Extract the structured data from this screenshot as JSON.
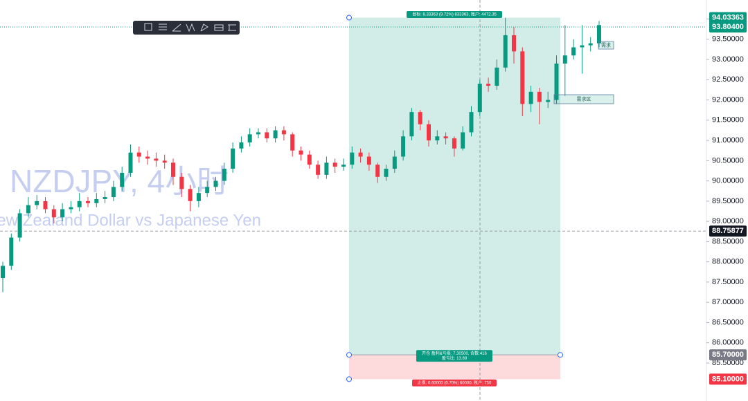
{
  "chart_data": {
    "type": "candlestick",
    "title": "NZDJPY, 4小时",
    "subtitle": "New Zealand Dollar vs Japanese Yen",
    "up_color": "#089981",
    "down_color": "#f23645",
    "open": [
      87.6,
      87.9,
      88.6,
      89.2,
      89.4,
      89.5,
      89.3,
      89.1,
      89.3,
      89.35,
      89.5,
      89.45,
      89.55,
      89.6,
      89.85,
      90.2,
      90.7,
      90.6,
      90.55,
      90.5,
      90.45,
      90.1,
      89.8,
      89.5,
      89.7,
      89.85,
      90.0,
      90.3,
      90.8,
      90.95,
      91.15,
      91.2,
      91.05,
      91.25,
      91.15,
      90.75,
      90.65,
      90.4,
      90.15,
      90.45,
      90.35,
      90.4,
      90.7,
      90.6,
      90.4,
      90.1,
      90.3,
      90.6,
      91.1,
      91.7,
      91.4,
      91.0,
      91.1,
      91.05,
      90.8,
      91.2,
      91.7,
      92.4,
      92.35,
      92.8,
      93.6,
      93.2,
      91.9,
      92.2,
      91.95,
      92.0,
      92.9,
      93.1,
      93.3,
      93.35,
      93.4
    ],
    "high": [
      88.0,
      88.7,
      89.3,
      89.6,
      89.65,
      89.6,
      89.4,
      89.45,
      89.5,
      89.7,
      89.6,
      89.7,
      89.75,
      90.0,
      90.35,
      90.9,
      90.85,
      90.75,
      90.7,
      90.65,
      90.55,
      90.2,
      89.9,
      89.85,
      90.0,
      90.1,
      90.45,
      90.95,
      91.1,
      91.3,
      91.3,
      91.3,
      91.35,
      91.35,
      91.2,
      90.85,
      90.75,
      90.5,
      90.6,
      90.55,
      90.55,
      90.85,
      90.8,
      90.7,
      90.45,
      90.4,
      90.75,
      91.25,
      91.8,
      91.75,
      91.5,
      91.25,
      91.2,
      91.1,
      91.35,
      91.85,
      92.5,
      92.55,
      93.0,
      94.03,
      93.8,
      93.3,
      92.35,
      92.3,
      92.2,
      93.1,
      93.85,
      93.5,
      93.85,
      93.55,
      93.95
    ],
    "low": [
      87.25,
      87.8,
      88.5,
      89.1,
      89.3,
      89.2,
      88.95,
      89.0,
      89.2,
      89.25,
      89.35,
      89.35,
      89.45,
      89.5,
      89.75,
      90.1,
      90.45,
      90.4,
      90.35,
      90.3,
      89.9,
      89.6,
      89.25,
      89.35,
      89.6,
      89.75,
      89.9,
      90.2,
      90.7,
      90.85,
      91.05,
      90.95,
      90.95,
      91.0,
      90.6,
      90.5,
      90.3,
      90.05,
      90.05,
      90.2,
      90.25,
      90.3,
      90.45,
      90.25,
      89.95,
      90.0,
      90.2,
      90.5,
      91.0,
      91.25,
      90.85,
      90.9,
      90.9,
      90.6,
      90.75,
      91.1,
      91.6,
      92.2,
      92.25,
      92.7,
      92.9,
      91.6,
      91.7,
      91.4,
      91.8,
      91.9,
      92.1,
      93.0,
      92.65,
      93.2,
      93.3
    ],
    "close": [
      87.9,
      88.6,
      89.2,
      89.4,
      89.5,
      89.3,
      89.1,
      89.3,
      89.35,
      89.5,
      89.45,
      89.55,
      89.6,
      89.85,
      90.2,
      90.7,
      90.6,
      90.55,
      90.5,
      90.45,
      90.1,
      89.8,
      89.5,
      89.7,
      89.85,
      90.0,
      90.3,
      90.8,
      90.95,
      91.15,
      91.2,
      91.05,
      91.25,
      91.15,
      90.75,
      90.65,
      90.4,
      90.15,
      90.45,
      90.35,
      90.4,
      90.7,
      90.6,
      90.4,
      90.1,
      90.3,
      90.6,
      91.1,
      91.7,
      91.4,
      91.0,
      91.1,
      91.05,
      90.8,
      91.2,
      91.7,
      92.4,
      92.35,
      92.8,
      93.6,
      93.2,
      91.9,
      92.2,
      91.95,
      92.0,
      92.9,
      93.1,
      93.3,
      93.35,
      93.4,
      93.85
    ],
    "ylim": [
      84.56,
      94.47
    ],
    "yticks": [
      {
        "value": 85.5,
        "label": "85.50000"
      },
      {
        "value": 86.0,
        "label": "86.00000"
      },
      {
        "value": 86.5,
        "label": "86.50000"
      },
      {
        "value": 87.0,
        "label": "87.00000"
      },
      {
        "value": 87.5,
        "label": "87.50000"
      },
      {
        "value": 88.0,
        "label": "88.00000"
      },
      {
        "value": 88.5,
        "label": "88.50000"
      },
      {
        "value": 89.0,
        "label": "89.00000"
      },
      {
        "value": 89.5,
        "label": "89.50000"
      },
      {
        "value": 90.0,
        "label": "90.00000"
      },
      {
        "value": 90.5,
        "label": "90.50000"
      },
      {
        "value": 91.0,
        "label": "91.00000"
      },
      {
        "value": 91.5,
        "label": "91.50000"
      },
      {
        "value": 92.0,
        "label": "92.00000"
      },
      {
        "value": 92.5,
        "label": "92.50000"
      },
      {
        "value": 93.0,
        "label": "93.00000"
      },
      {
        "value": 93.5,
        "label": "93.50000"
      },
      {
        "value": 94.0,
        "label": "94.00000"
      }
    ],
    "price_labels": [
      {
        "value": 94.03363,
        "label": "94.03363",
        "color": "#089981"
      },
      {
        "value": 93.804,
        "label": "93.80400",
        "color": "#089981"
      },
      {
        "value": 88.75877,
        "label": "88.75877",
        "color": "#131722"
      },
      {
        "value": 85.7,
        "label": "85.70000",
        "color": "#787b86"
      },
      {
        "value": 85.1,
        "label": "85.10000",
        "color": "#f23645"
      }
    ],
    "position": {
      "target_label": "目标: 8.33363 (9.72%) 833363, 账户: 4472.35",
      "entry_label": "开仓 盈利&亏损: 7.30500, 合数:416",
      "ratio_label": "盈亏比: 13.89",
      "stop_label": "止损: 0.60000 (0.70%) 60000, 账户: 750"
    },
    "annotations": [
      "需求",
      "需求区"
    ]
  }
}
